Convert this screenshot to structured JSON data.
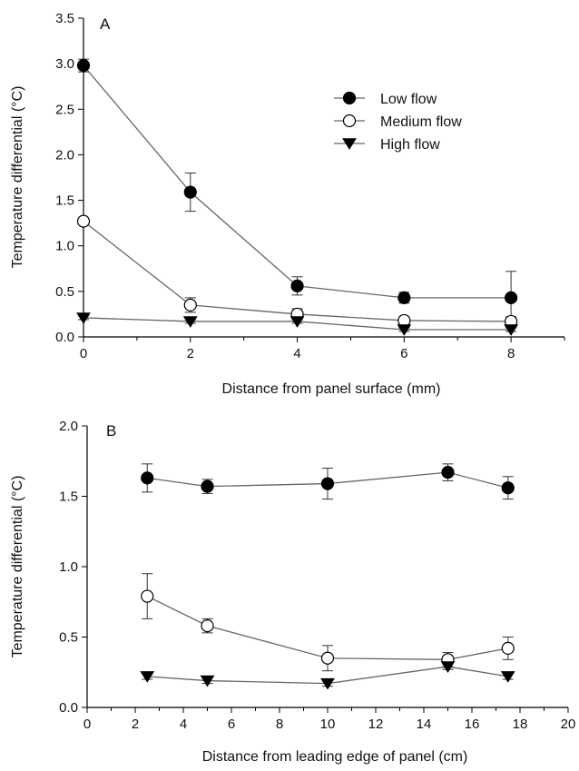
{
  "chart_data": [
    {
      "type": "line",
      "panel_label": "A",
      "xlabel": "Distance from panel surface (mm)",
      "ylabel": "Temperature differential (°C)",
      "xlim": [
        0,
        9
      ],
      "ylim": [
        0,
        3.5
      ],
      "x_ticks": [
        0,
        2,
        4,
        6,
        8
      ],
      "y_ticks": [
        0.0,
        0.5,
        1.0,
        1.5,
        2.0,
        2.5,
        3.0,
        3.5
      ],
      "grid": false,
      "legend_position": "top-right",
      "x": [
        0,
        2,
        4,
        6,
        8
      ],
      "series": [
        {
          "name": "Low flow",
          "marker": "filled-circle",
          "values": [
            2.98,
            1.59,
            0.56,
            0.43,
            0.43
          ],
          "errors": [
            0.07,
            0.21,
            0.1,
            0.06,
            0.29
          ]
        },
        {
          "name": "Medium flow",
          "marker": "open-circle",
          "values": [
            1.27,
            0.35,
            0.25,
            0.18,
            0.17
          ],
          "errors": [
            0.03,
            0.08,
            0.06,
            0.04,
            0.05
          ]
        },
        {
          "name": "High flow",
          "marker": "filled-triangle-down",
          "values": [
            0.21,
            0.17,
            0.17,
            0.08,
            0.08
          ],
          "errors": [
            0.02,
            0.02,
            0.02,
            0.02,
            0.02
          ]
        }
      ]
    },
    {
      "type": "line",
      "panel_label": "B",
      "xlabel": "Distance from leading edge of panel (cm)",
      "ylabel": "Temperature differential (°C)",
      "xlim": [
        0,
        20
      ],
      "ylim": [
        0,
        2.0
      ],
      "x_ticks": [
        0,
        2,
        4,
        6,
        8,
        10,
        12,
        14,
        16,
        18,
        20
      ],
      "y_ticks": [
        0.0,
        0.5,
        1.0,
        1.5,
        2.0
      ],
      "grid": false,
      "x": [
        2.5,
        5,
        10,
        15,
        17.5
      ],
      "series": [
        {
          "name": "Low flow",
          "marker": "filled-circle",
          "values": [
            1.63,
            1.57,
            1.59,
            1.67,
            1.56
          ],
          "errors": [
            0.1,
            0.05,
            0.11,
            0.06,
            0.08
          ]
        },
        {
          "name": "Medium flow",
          "marker": "open-circle",
          "values": [
            0.79,
            0.58,
            0.35,
            0.34,
            0.42
          ],
          "errors": [
            0.16,
            0.05,
            0.09,
            0.05,
            0.08
          ]
        },
        {
          "name": "High flow",
          "marker": "filled-triangle-down",
          "values": [
            0.22,
            0.19,
            0.17,
            0.29,
            0.22
          ],
          "errors": [
            0.02,
            0.02,
            0.02,
            0.02,
            0.02
          ]
        }
      ]
    }
  ]
}
